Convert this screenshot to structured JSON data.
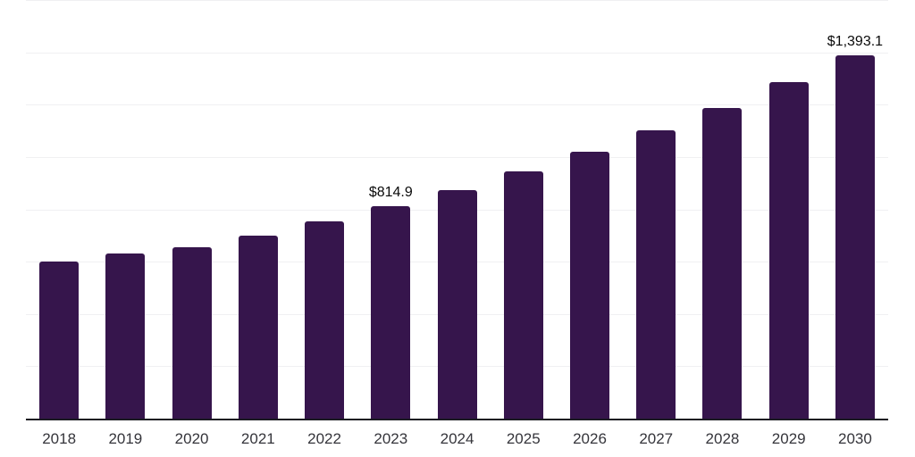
{
  "chart_data": {
    "type": "bar",
    "title": "",
    "xlabel": "",
    "ylabel": "",
    "categories": [
      "2018",
      "2019",
      "2020",
      "2021",
      "2022",
      "2023",
      "2024",
      "2025",
      "2026",
      "2027",
      "2028",
      "2029",
      "2030"
    ],
    "values": [
      604,
      633,
      660,
      704,
      757,
      814.9,
      877,
      948,
      1022,
      1105,
      1191,
      1289,
      1393.1
    ],
    "bar_labels": [
      "",
      "",
      "",
      "",
      "",
      "$814.9",
      "",
      "",
      "",
      "",
      "",
      "",
      "$1,393.1"
    ],
    "ylim": [
      0,
      1600
    ],
    "gridline_step": 200,
    "grid": true,
    "legend": false,
    "y_axis_tick_labels_visible": false,
    "colors": {
      "bar": "#36154C",
      "gridline": "#f0f0f2",
      "axis_line": "#1b1b22",
      "x_tick_label": "#35353b",
      "data_label": "#0a0a0a",
      "background": "#ffffff"
    }
  }
}
